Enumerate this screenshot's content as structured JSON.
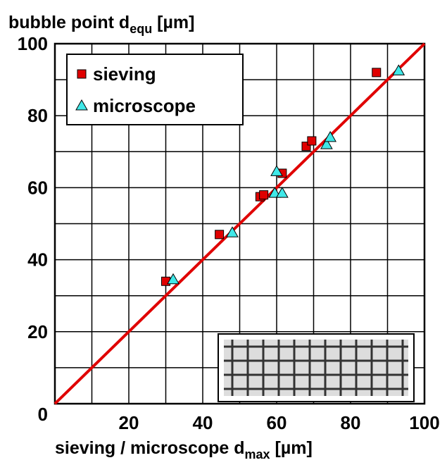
{
  "chart_data": {
    "type": "scatter",
    "y_label": {
      "text": "bubble point d",
      "sub": "equ",
      "unit": " [µm]"
    },
    "x_label": {
      "text": "sieving / microscope d",
      "sub": "max",
      "unit": " [µm]"
    },
    "xlim": [
      0,
      100
    ],
    "ylim": [
      0,
      100
    ],
    "xticks": [
      20,
      40,
      60,
      80,
      100
    ],
    "yticks": [
      0,
      20,
      40,
      60,
      80,
      100
    ],
    "xgrid": [
      10,
      20,
      30,
      40,
      50,
      60,
      70,
      80,
      90
    ],
    "ygrid": [
      10,
      20,
      30,
      40,
      50,
      60,
      70,
      80,
      90
    ],
    "grid": true,
    "legend": "upper left",
    "series": [
      {
        "name": "sieving",
        "color": "#e00000",
        "marker": "square",
        "x": [
          30,
          44.5,
          55.5,
          56.5,
          61.5,
          68,
          69.5,
          87
        ],
        "values": [
          34,
          47,
          57.5,
          58,
          64,
          71.5,
          73,
          92
        ]
      },
      {
        "name": "microscope",
        "color": "#40e8e8",
        "marker": "triangle",
        "x": [
          32,
          48,
          59.5,
          60,
          61.5,
          73.5,
          74.5,
          93
        ],
        "values": [
          34.5,
          47.5,
          58.5,
          64.5,
          58.5,
          72,
          74,
          92.5
        ]
      }
    ],
    "fit_line": {
      "color": "#e00000",
      "x": [
        0,
        100
      ],
      "values": [
        0,
        100
      ]
    }
  }
}
